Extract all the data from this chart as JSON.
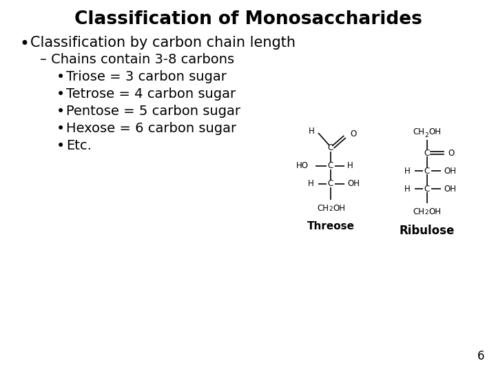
{
  "title": "Classification of Monosaccharides",
  "title_fontsize": 19,
  "title_fontweight": "bold",
  "background_color": "#ffffff",
  "text_color": "#000000",
  "bullet1": "Classification by carbon chain length",
  "bullet1_fontsize": 15,
  "sub_bullet1": "– Chains contain 3-8 carbons",
  "sub_bullet1_fontsize": 14,
  "items": [
    "Triose = 3 carbon sugar",
    "Tetrose = 4 carbon sugar",
    "Pentose = 5 carbon sugar",
    "Hexose = 6 carbon sugar",
    "Etc."
  ],
  "items_fontsize": 14,
  "page_number": "6",
  "page_number_fontsize": 12,
  "threose_label": "Threose",
  "ribulose_label": "Ribulose",
  "label_fontsize": 11,
  "label_fontweight": "bold",
  "struct_fontsize": 8.5,
  "struct_sub_fontsize": 6.5,
  "struct_lw": 1.2
}
